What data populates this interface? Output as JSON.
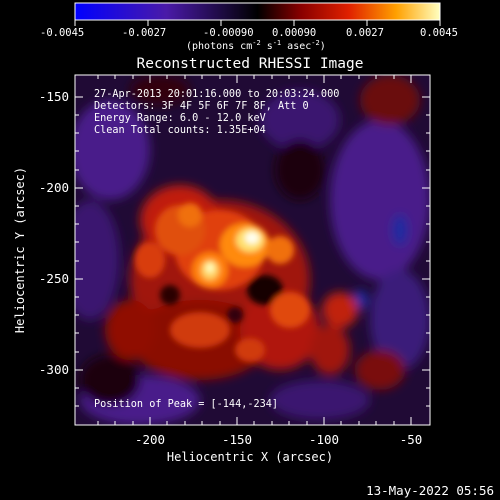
{
  "colorbar": {
    "ticks": [
      "-0.0045",
      "-0.0027",
      "-0.00090",
      "0.00090",
      "0.0027",
      "0.0045"
    ],
    "units_main": "(photons cm",
    "units_exp1": "-2",
    "units_mid": " s",
    "units_exp2": "-1",
    "units_end": " asec",
    "units_exp3": "-2",
    "units_close": ")"
  },
  "plot": {
    "title": "Reconstructed RHESSI Image",
    "xlabel": "Heliocentric X (arcsec)",
    "ylabel": "Heliocentric Y (arcsec)",
    "x_ticks": [
      "-200",
      "-150",
      "-100",
      "-50"
    ],
    "y_ticks": [
      "-150",
      "-200",
      "-250",
      "-300"
    ],
    "info_lines": [
      "27-Apr-2013 20:01:16.000 to 20:03:24.000",
      "Detectors: 3F 4F 5F 6F 7F 8F, Att 0",
      "Energy Range: 6.0 - 12.0 keV",
      "Clean     Total counts: 1.35E+04"
    ],
    "peak_label": "Position of Peak = [-144,-234]"
  },
  "footer": {
    "timestamp": "13-May-2022 05:56"
  },
  "colors": {
    "background": "#000000",
    "text": "#ffffff",
    "cmap_low": "#0000ff",
    "cmap_mid": "#000000",
    "cmap_high": "#ffff80"
  }
}
